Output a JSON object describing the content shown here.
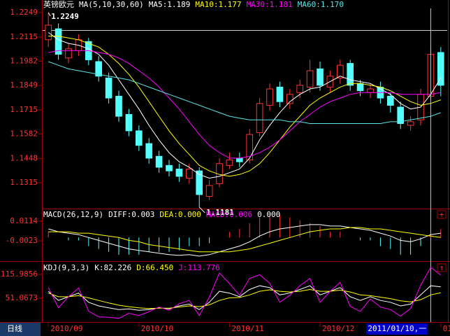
{
  "toolbar": {
    "period": "日线"
  },
  "chart_data": [
    {
      "type": "candlestick",
      "title": "英镑欧元",
      "subtitle": "MA(5,10,30,60)",
      "categories": [
        "2010/09",
        null,
        null,
        null,
        null,
        null,
        null,
        null,
        null,
        "2010/10",
        null,
        null,
        null,
        null,
        null,
        null,
        null,
        null,
        "2010/11",
        null,
        null,
        null,
        null,
        null,
        null,
        null,
        null,
        "2010/12",
        null,
        null,
        null,
        null,
        null,
        null,
        null,
        null,
        null,
        null,
        null,
        "01"
      ],
      "open": [
        1.21,
        1.216,
        1.2,
        1.204,
        1.209,
        1.198,
        1.189,
        1.179,
        1.169,
        1.16,
        1.153,
        1.146,
        1.141,
        1.139,
        1.134,
        1.138,
        1.124,
        1.131,
        1.141,
        1.145,
        1.144,
        1.159,
        1.174,
        1.184,
        1.175,
        1.181,
        1.184,
        1.194,
        1.184,
        1.189,
        1.197,
        1.186,
        1.181,
        1.184,
        1.179,
        1.173,
        1.163,
        1.166,
        1.179,
        1.203
      ],
      "high": [
        1.2249,
        1.219,
        1.208,
        1.213,
        1.211,
        1.201,
        1.192,
        1.182,
        1.172,
        1.163,
        1.156,
        1.149,
        1.144,
        1.142,
        1.142,
        1.14,
        1.133,
        1.145,
        1.148,
        1.148,
        1.161,
        1.178,
        1.186,
        1.187,
        1.183,
        1.188,
        1.199,
        1.198,
        1.193,
        1.199,
        1.199,
        1.188,
        1.186,
        1.187,
        1.181,
        1.176,
        1.168,
        1.183,
        1.206,
        1.206
      ],
      "low": [
        1.206,
        1.199,
        1.197,
        1.201,
        1.196,
        1.187,
        1.175,
        1.165,
        1.157,
        1.149,
        1.142,
        1.137,
        1.135,
        1.132,
        1.131,
        1.1181,
        1.122,
        1.129,
        1.139,
        1.14,
        1.142,
        1.157,
        1.171,
        1.173,
        1.172,
        1.178,
        1.181,
        1.182,
        1.181,
        1.186,
        1.182,
        1.179,
        1.178,
        1.175,
        1.17,
        1.161,
        1.16,
        1.163,
        1.177,
        1.179
      ],
      "close": [
        1.218,
        1.202,
        1.205,
        1.21,
        1.199,
        1.19,
        1.178,
        1.168,
        1.16,
        1.152,
        1.145,
        1.14,
        1.138,
        1.135,
        1.139,
        1.125,
        1.13,
        1.142,
        1.144,
        1.143,
        1.158,
        1.175,
        1.183,
        1.176,
        1.18,
        1.185,
        1.193,
        1.185,
        1.19,
        1.196,
        1.185,
        1.182,
        1.183,
        1.178,
        1.174,
        1.164,
        1.165,
        1.18,
        1.202,
        1.185
      ],
      "up_color": "#ff3232",
      "down_color": "#54ffff",
      "series": [
        {
          "name": "MA5:1.189",
          "color": "#ffffff",
          "values": [
            1.214,
            1.21,
            1.208,
            1.207,
            1.205,
            1.202,
            1.196,
            1.188,
            1.18,
            1.172,
            1.163,
            1.155,
            1.148,
            1.143,
            1.14,
            1.136,
            1.134,
            1.135,
            1.137,
            1.139,
            1.145,
            1.155,
            1.163,
            1.17,
            1.176,
            1.18,
            1.183,
            1.184,
            1.187,
            1.19,
            1.188,
            1.187,
            1.186,
            1.183,
            1.18,
            1.175,
            1.172,
            1.173,
            1.18,
            1.189
          ]
        },
        {
          "name": "MA10:1.177",
          "color": "#ffff00",
          "values": [
            1.212,
            1.212,
            1.211,
            1.21,
            1.208,
            1.206,
            1.202,
            1.197,
            1.191,
            1.184,
            1.176,
            1.168,
            1.16,
            1.153,
            1.147,
            1.141,
            1.138,
            1.136,
            1.135,
            1.136,
            1.138,
            1.142,
            1.148,
            1.155,
            1.162,
            1.168,
            1.174,
            1.178,
            1.181,
            1.184,
            1.186,
            1.186,
            1.185,
            1.184,
            1.182,
            1.179,
            1.176,
            1.174,
            1.175,
            1.177
          ]
        },
        {
          "name": "MA30:1.181",
          "color": "#ff00ff",
          "values": [
            1.203,
            1.204,
            1.204,
            1.204,
            1.204,
            1.203,
            1.202,
            1.2,
            1.197,
            1.193,
            1.189,
            1.184,
            1.178,
            1.172,
            1.165,
            1.158,
            1.152,
            1.148,
            1.145,
            1.145,
            1.146,
            1.148,
            1.151,
            1.155,
            1.16,
            1.165,
            1.169,
            1.173,
            1.176,
            1.178,
            1.18,
            1.181,
            1.181,
            1.181,
            1.181,
            1.18,
            1.18,
            1.18,
            1.18,
            1.181
          ]
        },
        {
          "name": "MA60:1.170",
          "color": "#5ae6e6",
          "values": [
            1.198,
            1.196,
            1.194,
            1.193,
            1.192,
            1.191,
            1.19,
            1.189,
            1.188,
            1.186,
            1.184,
            1.182,
            1.18,
            1.178,
            1.176,
            1.174,
            1.172,
            1.17,
            1.168,
            1.167,
            1.166,
            1.166,
            1.166,
            1.166,
            1.165,
            1.165,
            1.164,
            1.164,
            1.164,
            1.164,
            1.164,
            1.164,
            1.164,
            1.164,
            1.165,
            1.165,
            1.166,
            1.167,
            1.168,
            1.17
          ]
        }
      ],
      "annotations": [
        "1.2249",
        "1.1181"
      ],
      "cursor_label": "2011/01/10,一",
      "ylim": [
        1.1173,
        1.2272
      ],
      "yticks": [
        1.2249,
        1.2115,
        1.1982,
        1.1849,
        1.1715,
        1.1582,
        1.1448,
        1.1315
      ]
    },
    {
      "type": "macd",
      "title": "MACD(26,12,9)",
      "extra_label": "0.000",
      "series": [
        {
          "name": "DIFF:0.003",
          "color": "#ffffff",
          "values": [
            0.006,
            0.004,
            0.003,
            0.002,
            0.0,
            -0.002,
            -0.004,
            -0.006,
            -0.008,
            -0.009,
            -0.01,
            -0.011,
            -0.012,
            -0.0125,
            -0.012,
            -0.013,
            -0.012,
            -0.01,
            -0.008,
            -0.006,
            -0.003,
            0.001,
            0.004,
            0.006,
            0.007,
            0.008,
            0.009,
            0.009,
            0.008,
            0.008,
            0.007,
            0.006,
            0.005,
            0.003,
            0.001,
            -0.002,
            -0.003,
            -0.001,
            0.002,
            0.003
          ]
        },
        {
          "name": "DEA:0.000",
          "color": "#ffff00",
          "values": [
            0.004,
            0.004,
            0.004,
            0.003,
            0.003,
            0.002,
            0.001,
            0.0,
            -0.002,
            -0.003,
            -0.005,
            -0.006,
            -0.007,
            -0.008,
            -0.009,
            -0.01,
            -0.01,
            -0.01,
            -0.01,
            -0.009,
            -0.008,
            -0.006,
            -0.004,
            -0.002,
            0.0,
            0.002,
            0.004,
            0.005,
            0.006,
            0.006,
            0.007,
            0.007,
            0.006,
            0.006,
            0.005,
            0.004,
            0.003,
            0.002,
            0.001,
            0.0
          ]
        },
        {
          "name": "MACD:0.006",
          "color": "#ff00ff",
          "bars": true,
          "up_color": "#ff3232",
          "down_color": "#54ffff",
          "values": [
            0.004,
            0,
            -0.002,
            -0.002,
            -0.006,
            -0.008,
            -0.01,
            -0.012,
            -0.012,
            -0.012,
            -0.01,
            -0.01,
            -0.01,
            -0.009,
            -0.006,
            -0.006,
            -0.004,
            0,
            0.004,
            0.006,
            0.01,
            0.014,
            0.016,
            0.016,
            0.014,
            0.012,
            0.01,
            0.008,
            0.004,
            0.004,
            0,
            -0.002,
            -0.002,
            -0.006,
            -0.008,
            -0.012,
            -0.012,
            -0.006,
            0.002,
            0.006
          ]
        }
      ],
      "ylim": [
        -0.016,
        0.0192
      ],
      "yticks": [
        0.0114,
        -0.0023
      ]
    },
    {
      "type": "kdj",
      "title": "KDJ(9,3,3)",
      "series": [
        {
          "name": "K:82.226",
          "color": "#ffffff",
          "values": [
            70,
            45,
            55,
            65,
            40,
            30,
            25,
            20,
            22,
            18,
            20,
            25,
            22,
            30,
            35,
            20,
            40,
            70,
            65,
            55,
            75,
            85,
            80,
            60,
            65,
            75,
            85,
            60,
            70,
            80,
            55,
            45,
            55,
            45,
            40,
            30,
            35,
            60,
            85,
            82
          ]
        },
        {
          "name": "D:66.450",
          "color": "#ffff00",
          "values": [
            65,
            55,
            55,
            58,
            52,
            45,
            38,
            32,
            28,
            25,
            23,
            24,
            24,
            27,
            30,
            28,
            33,
            45,
            52,
            53,
            60,
            70,
            74,
            70,
            68,
            70,
            75,
            70,
            70,
            73,
            68,
            60,
            58,
            54,
            50,
            44,
            41,
            47,
            60,
            66
          ]
        },
        {
          "name": "J:113.776",
          "color": "#ff00ff",
          "values": [
            80,
            25,
            55,
            79,
            16,
            0,
            -1,
            -4,
            10,
            4,
            14,
            27,
            18,
            36,
            45,
            4,
            54,
            120,
            91,
            59,
            105,
            115,
            92,
            40,
            59,
            85,
            105,
            40,
            70,
            94,
            29,
            15,
            49,
            27,
            20,
            2,
            23,
            86,
            135,
            114
          ]
        }
      ],
      "ylim": [
        -13.85,
        146.54
      ],
      "yticks": [
        115.9856,
        51.0673
      ]
    }
  ]
}
